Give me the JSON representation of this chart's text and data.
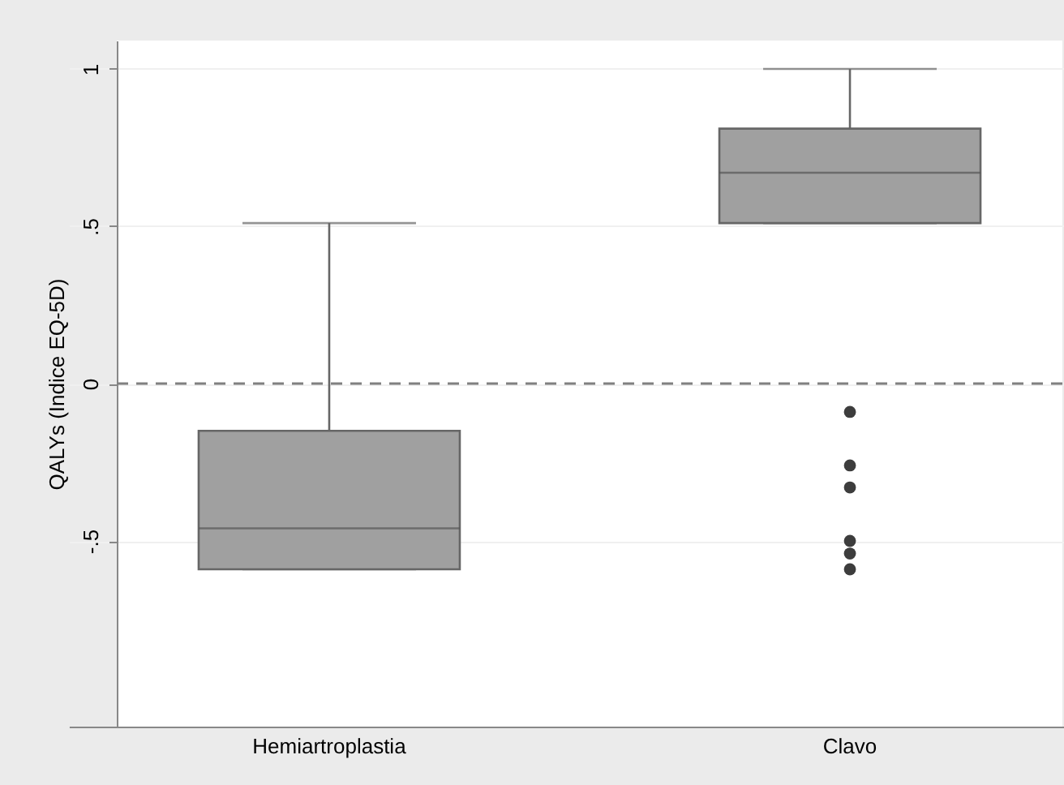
{
  "chart_data": {
    "type": "box",
    "ylabel": "QALYs (Indice EQ-5D)",
    "categories": [
      "Hemiartroplastia",
      "Clavo"
    ],
    "series": [
      {
        "color": "#a0a0a0",
        "boxes": [
          {
            "low": -0.59,
            "q1": -0.59,
            "median": -0.46,
            "q3": -0.15,
            "high": 0.51
          },
          {
            "low": 0.51,
            "q1": 0.51,
            "median": 0.67,
            "q3": 0.81,
            "high": 1,
            "outliers": [
              -0.09,
              -0.26,
              -0.33,
              -0.5,
              -0.54,
              -0.59
            ]
          }
        ]
      }
    ],
    "ylim": [
      -1.09,
      1.09
    ],
    "yticks": [
      {
        "value": -0.5,
        "label": "-.5"
      },
      0,
      {
        "value": 0.5,
        "label": ".5"
      },
      1
    ],
    "ref_lines": [
      {
        "axis": "y",
        "value": 0,
        "line_style": "dashed",
        "color": "#808080"
      }
    ],
    "grid": "y"
  }
}
